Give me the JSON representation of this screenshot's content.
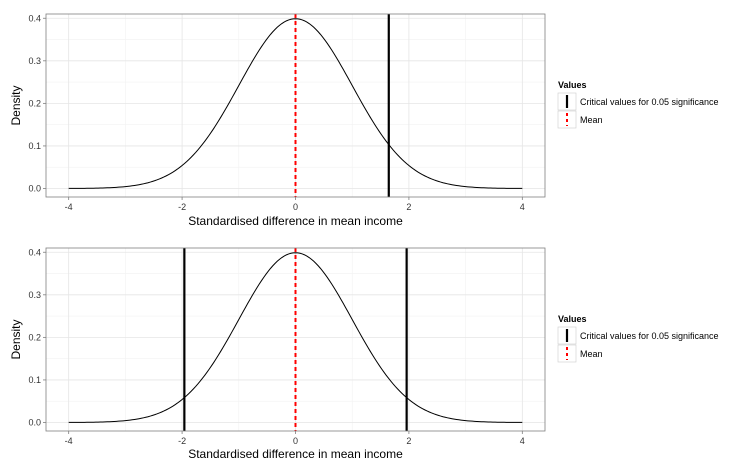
{
  "chart_data": [
    {
      "type": "line",
      "xlabel": "Standardised difference in mean income",
      "ylabel": "Density",
      "xlim": [
        -4,
        4
      ],
      "ylim": [
        0,
        0.41
      ],
      "x_ticks": [
        -4,
        -2,
        0,
        2,
        4
      ],
      "y_ticks": [
        0.0,
        0.1,
        0.2,
        0.3,
        0.4
      ],
      "x_tick_labels": [
        "-4",
        "-2",
        "0",
        "2",
        "4"
      ],
      "y_tick_labels": [
        "0.0",
        "0.1",
        "0.2",
        "0.3",
        "0.4"
      ],
      "grid": true,
      "series": [
        {
          "x": [
            -4,
            -3.5,
            -3,
            -2.5,
            -2,
            -1.5,
            -1,
            -0.5,
            0,
            0.5,
            1,
            1.5,
            2,
            2.5,
            3,
            3.5,
            4
          ],
          "y": [
            0.0001,
            0.0009,
            0.0044,
            0.0175,
            0.054,
            0.1295,
            0.242,
            0.3521,
            0.3989,
            0.3521,
            0.242,
            0.1295,
            0.054,
            0.0175,
            0.0044,
            0.0009,
            0.0001
          ]
        }
      ],
      "vlines": [
        {
          "x": 1.645,
          "legend": "Critical values for 0.05 significance",
          "color": "#000000",
          "style": "solid"
        },
        {
          "x": 0,
          "legend": "Mean",
          "color": "#ff0000",
          "style": "dashed"
        }
      ],
      "legend": {
        "title": "Values",
        "position": "right",
        "entries": [
          "Critical values for 0.05 significance",
          "Mean"
        ]
      }
    },
    {
      "type": "line",
      "xlabel": "Standardised difference in mean income",
      "ylabel": "Density",
      "xlim": [
        -4,
        4
      ],
      "ylim": [
        0,
        0.41
      ],
      "x_ticks": [
        -4,
        -2,
        0,
        2,
        4
      ],
      "y_ticks": [
        0.0,
        0.1,
        0.2,
        0.3,
        0.4
      ],
      "x_tick_labels": [
        "-4",
        "-2",
        "0",
        "2",
        "4"
      ],
      "y_tick_labels": [
        "0.0",
        "0.1",
        "0.2",
        "0.3",
        "0.4"
      ],
      "grid": true,
      "series": [
        {
          "x": [
            -4,
            -3.5,
            -3,
            -2.5,
            -2,
            -1.5,
            -1,
            -0.5,
            0,
            0.5,
            1,
            1.5,
            2,
            2.5,
            3,
            3.5,
            4
          ],
          "y": [
            0.0001,
            0.0009,
            0.0044,
            0.0175,
            0.054,
            0.1295,
            0.242,
            0.3521,
            0.3989,
            0.3521,
            0.242,
            0.1295,
            0.054,
            0.0175,
            0.0044,
            0.0009,
            0.0001
          ]
        }
      ],
      "vlines": [
        {
          "x": -1.96,
          "legend": "Critical values for 0.05 significance",
          "color": "#000000",
          "style": "solid"
        },
        {
          "x": 1.96,
          "legend": "Critical values for 0.05 significance",
          "color": "#000000",
          "style": "solid"
        },
        {
          "x": 0,
          "legend": "Mean",
          "color": "#ff0000",
          "style": "dashed"
        }
      ],
      "legend": {
        "title": "Values",
        "position": "right",
        "entries": [
          "Critical values for 0.05 significance",
          "Mean"
        ]
      }
    }
  ]
}
